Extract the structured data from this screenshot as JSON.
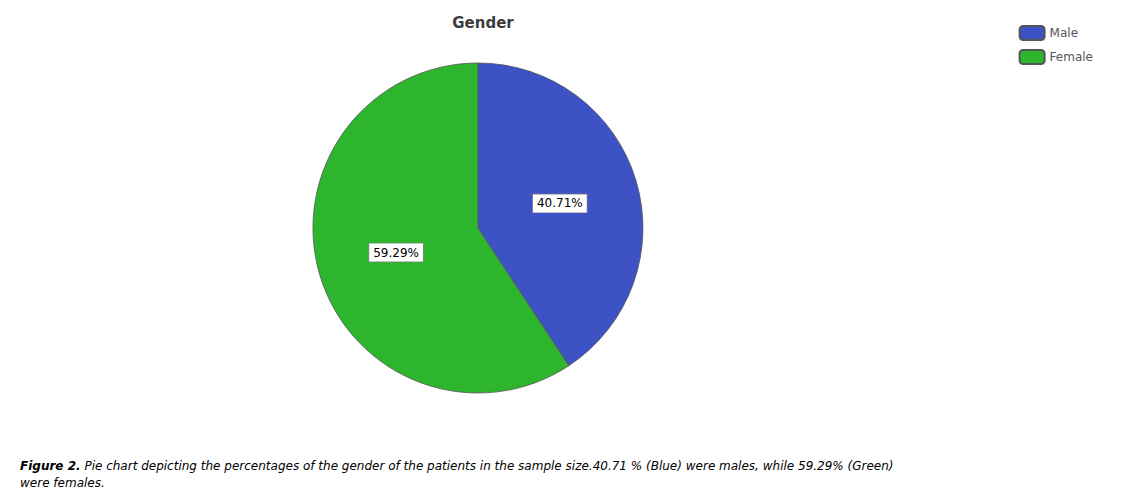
{
  "chart_data": {
    "type": "pie",
    "title": "Gender",
    "categories": [
      "Male",
      "Female"
    ],
    "values": [
      40.71,
      59.29
    ],
    "value_labels": [
      "40.71%",
      "59.29%"
    ],
    "colors": [
      "#3d52c4",
      "#2db52d"
    ],
    "data_labels": true,
    "legend": "upper right",
    "annotations": [
      "Figure 2.",
      "Pie chart depicting the percentages of the gender of the patients in the sample size.40.71 % (Blue) were males, while 59.29% (Green)",
      "were females."
    ]
  }
}
